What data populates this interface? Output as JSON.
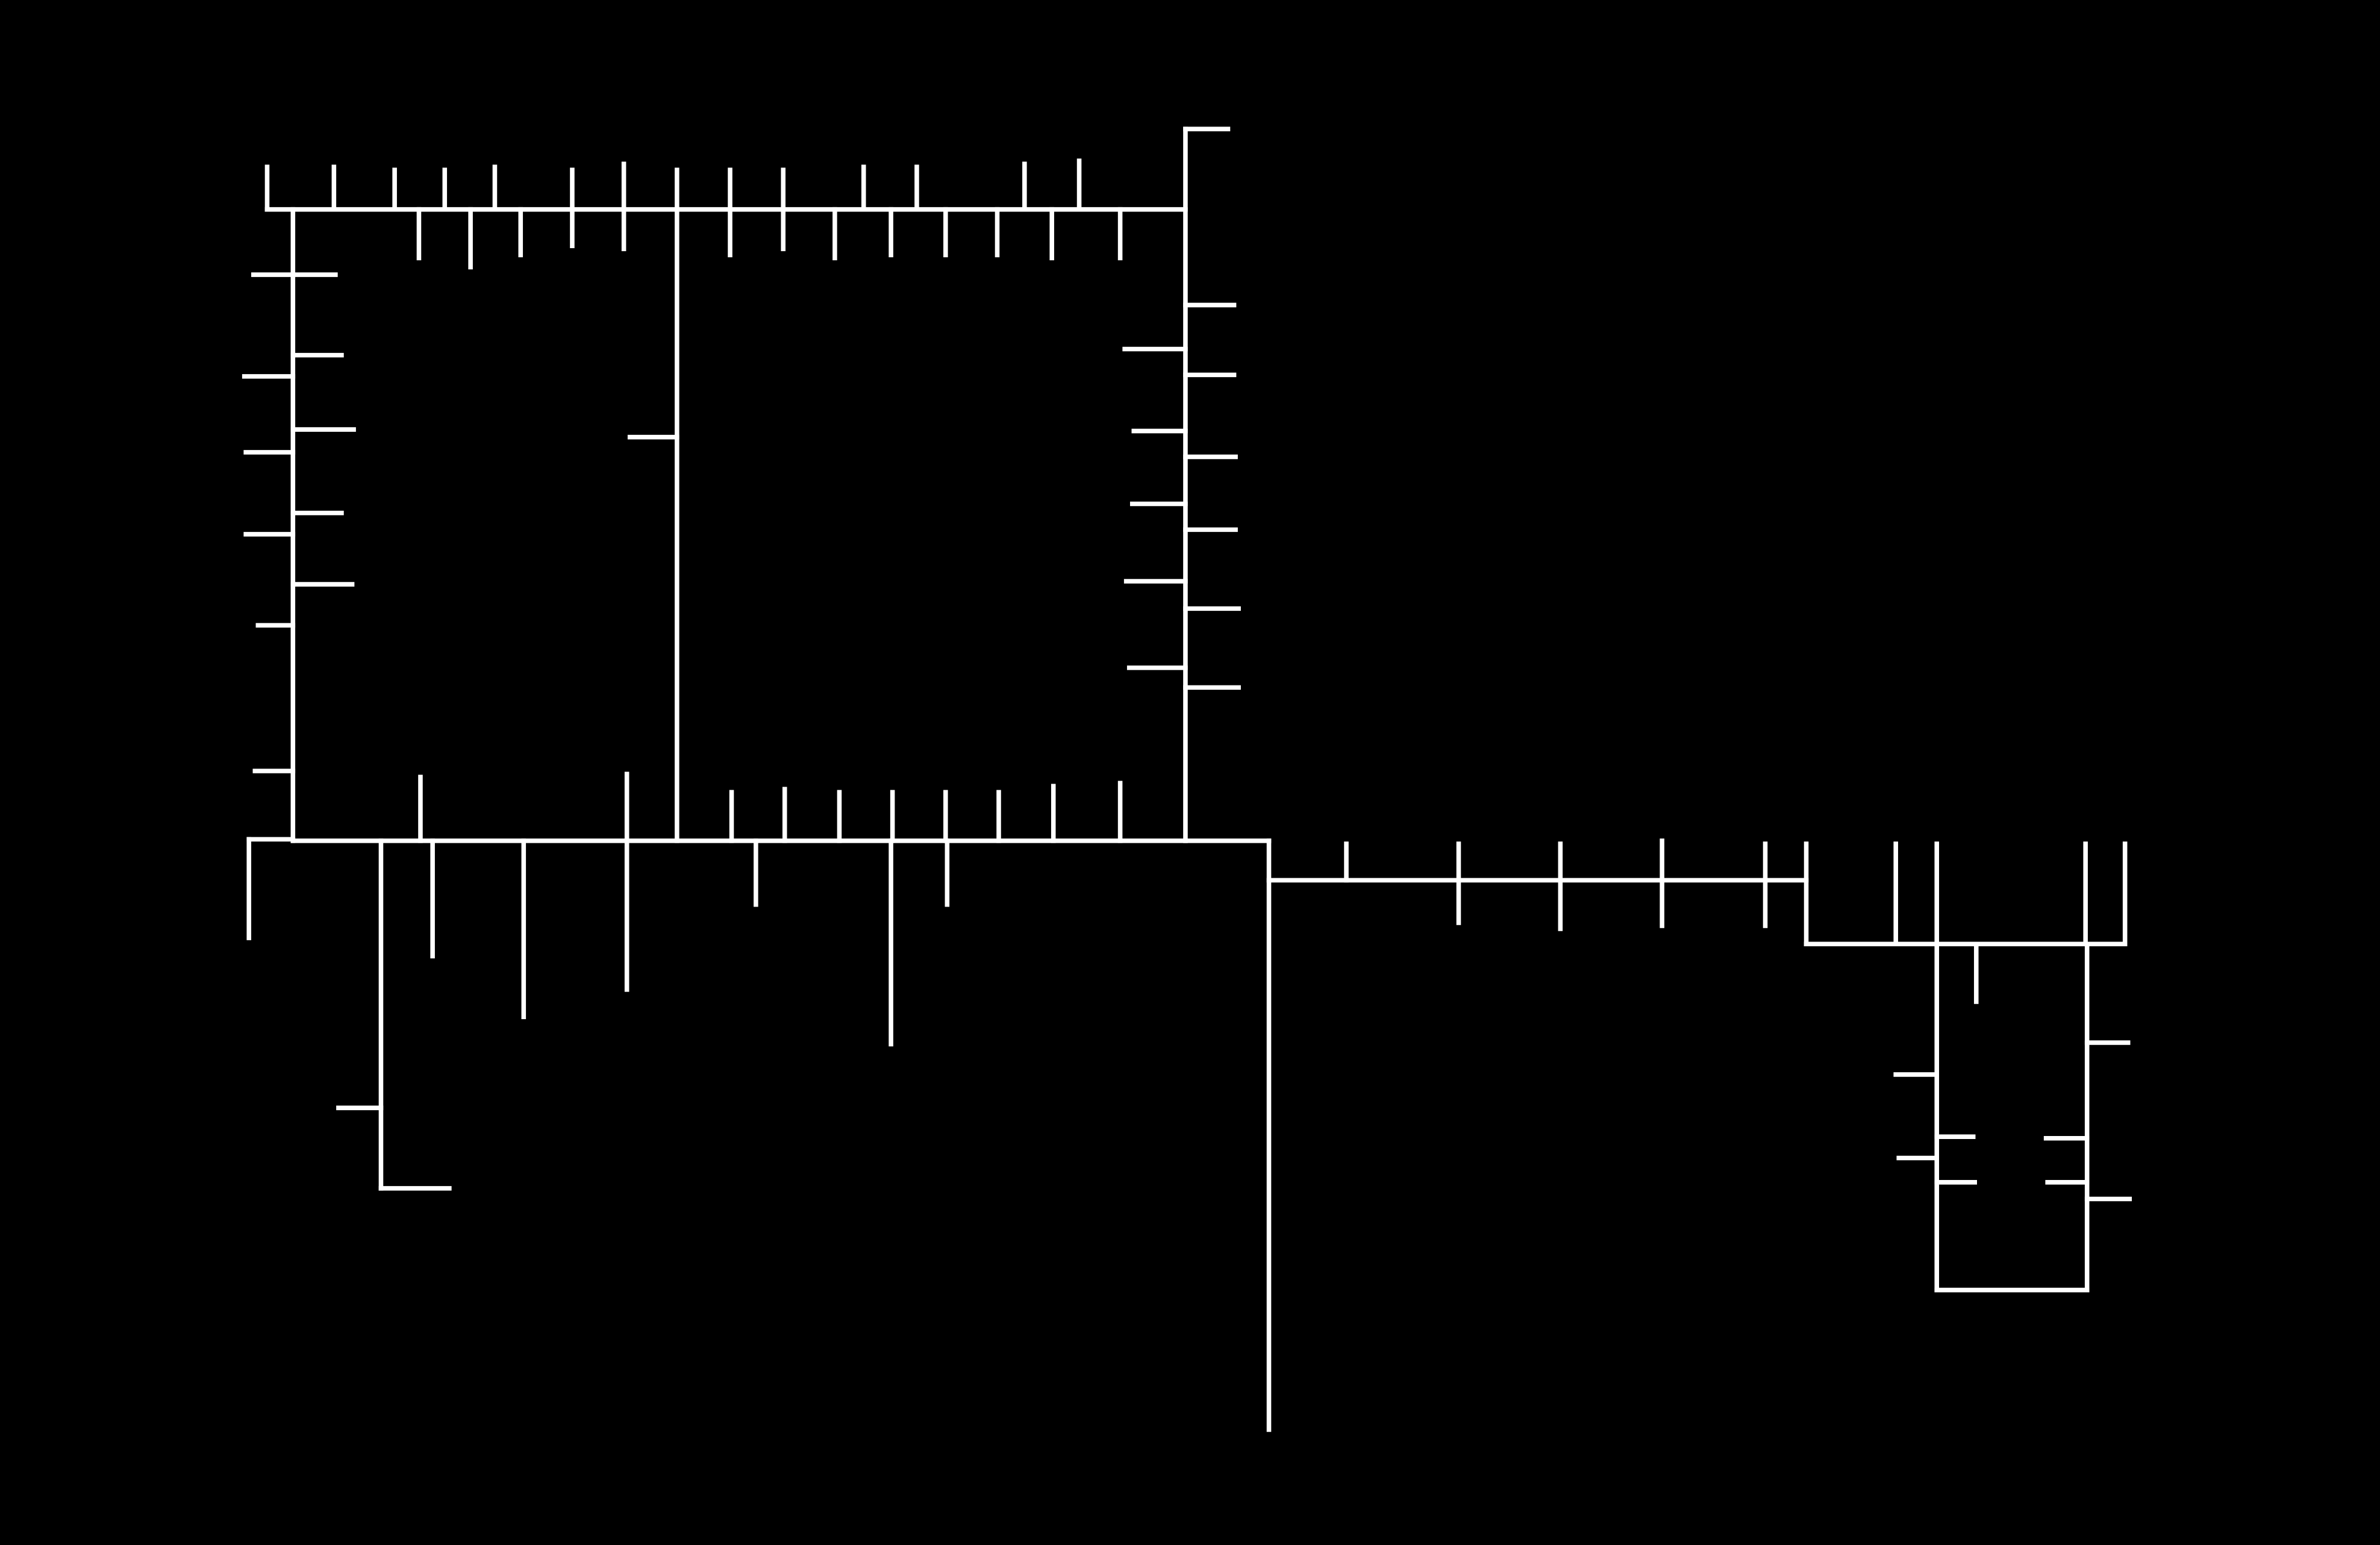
{
  "diagram": {
    "kind": "line-network",
    "background_color": "#000000",
    "line_color": "#ffffff",
    "labels": []
  }
}
